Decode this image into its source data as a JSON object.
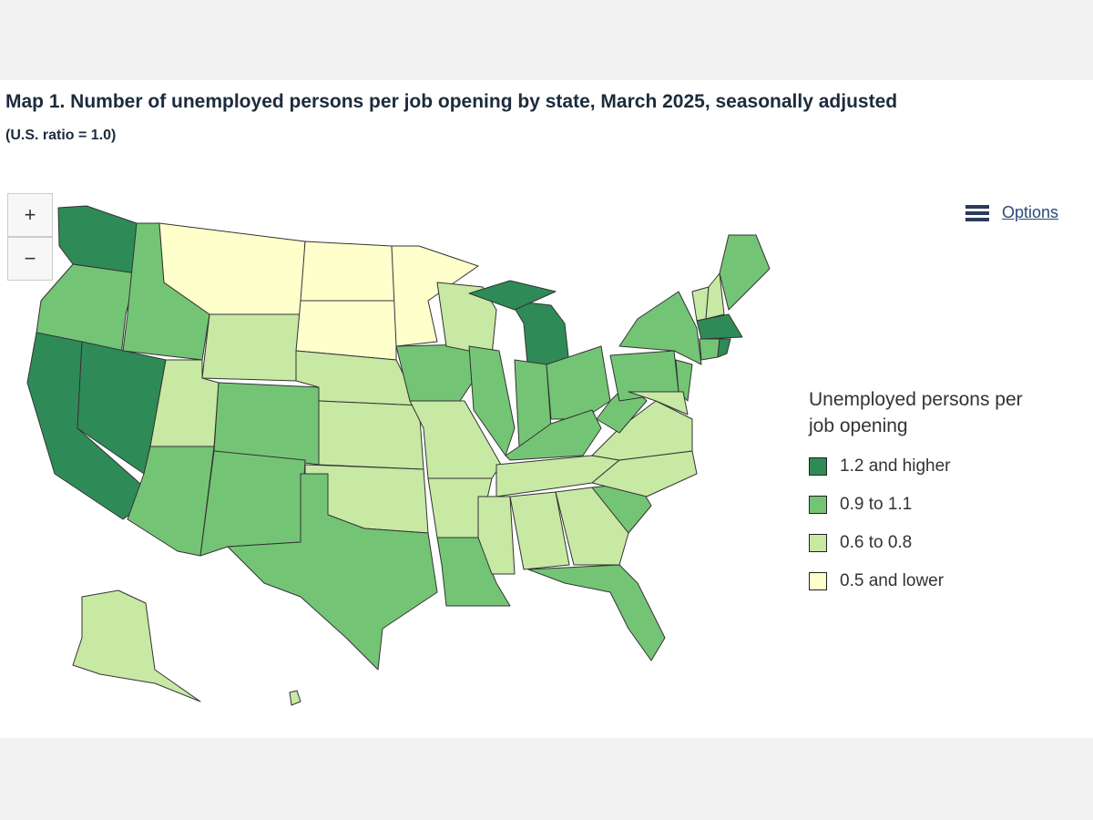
{
  "header": {
    "title": "Map 1. Number of unemployed persons per job opening by state, March 2025, seasonally adjusted",
    "subtitle": "(U.S. ratio = 1.0)"
  },
  "controls": {
    "zoom_in": "+",
    "zoom_out": "−",
    "options": "Options"
  },
  "legend": {
    "title": "Unemployed persons per job opening",
    "items": [
      {
        "label": "1.2 and higher",
        "color": "#2e8b57"
      },
      {
        "label": "0.9 to 1.1",
        "color": "#74c476"
      },
      {
        "label": "0.6 to 0.8",
        "color": "#c7e9a4"
      },
      {
        "label": "0.5 and lower",
        "color": "#ffffcc"
      }
    ]
  }
}
